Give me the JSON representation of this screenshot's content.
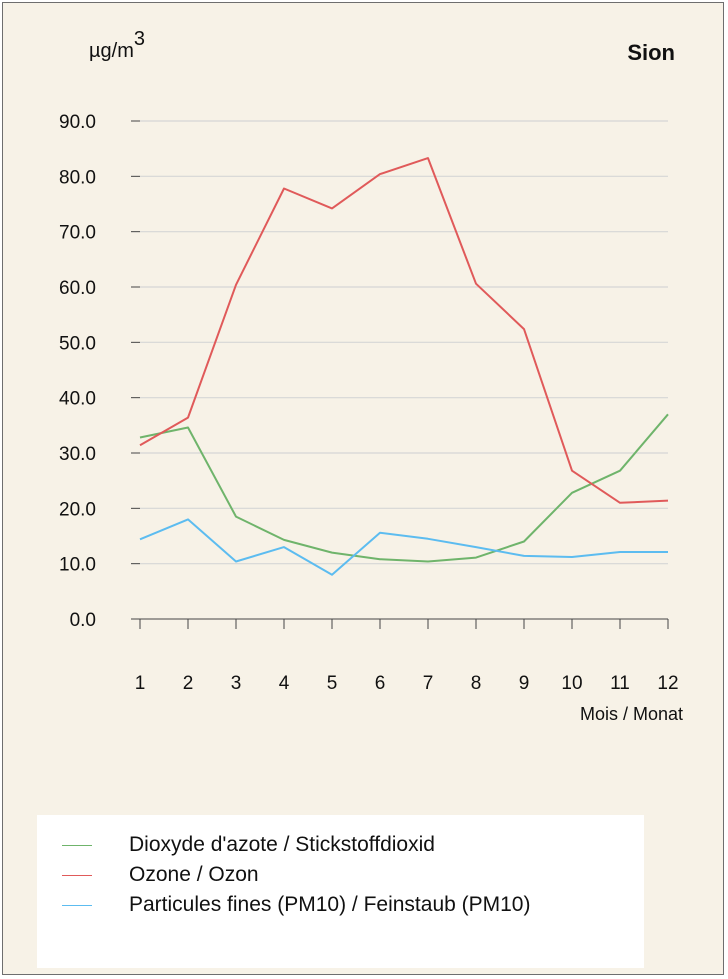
{
  "unit_label": "µg/m",
  "unit_power": "3",
  "chart_data": {
    "type": "line",
    "title": "Sion",
    "xlabel": "Mois / Monat",
    "ylabel": "µg/m3",
    "x": [
      1,
      2,
      3,
      4,
      5,
      6,
      7,
      8,
      9,
      10,
      11,
      12
    ],
    "x_tick_labels": [
      "1",
      "2",
      "3",
      "4",
      "5",
      "6",
      "7",
      "8",
      "9",
      "10",
      "11",
      "12"
    ],
    "y_tick_labels": [
      "0.0",
      "10.0",
      "20.0",
      "30.0",
      "40.0",
      "50.0",
      "60.0",
      "70.0",
      "80.0",
      "90.0"
    ],
    "ylim": [
      0,
      90
    ],
    "grid": true,
    "legend_position": "bottom",
    "series": [
      {
        "name": "Dioxyde d'azote / Stickstoffdioxid",
        "color": "#6fb46b",
        "values": [
          32.8,
          34.6,
          18.5,
          14.3,
          12.0,
          10.8,
          10.4,
          11.1,
          14.0,
          22.8,
          26.8,
          37.0
        ]
      },
      {
        "name": "Ozone / Ozon",
        "color": "#e05a5a",
        "values": [
          31.4,
          36.4,
          60.4,
          77.8,
          74.2,
          80.4,
          83.3,
          60.6,
          52.4,
          26.8,
          21.0,
          21.4
        ]
      },
      {
        "name": "Particules fines (PM10) / Feinstaub (PM10)",
        "color": "#5cbcf0",
        "values": [
          14.4,
          18.0,
          10.4,
          13.0,
          8.0,
          15.6,
          14.5,
          13.0,
          11.4,
          11.2,
          12.1,
          12.1
        ]
      }
    ]
  }
}
